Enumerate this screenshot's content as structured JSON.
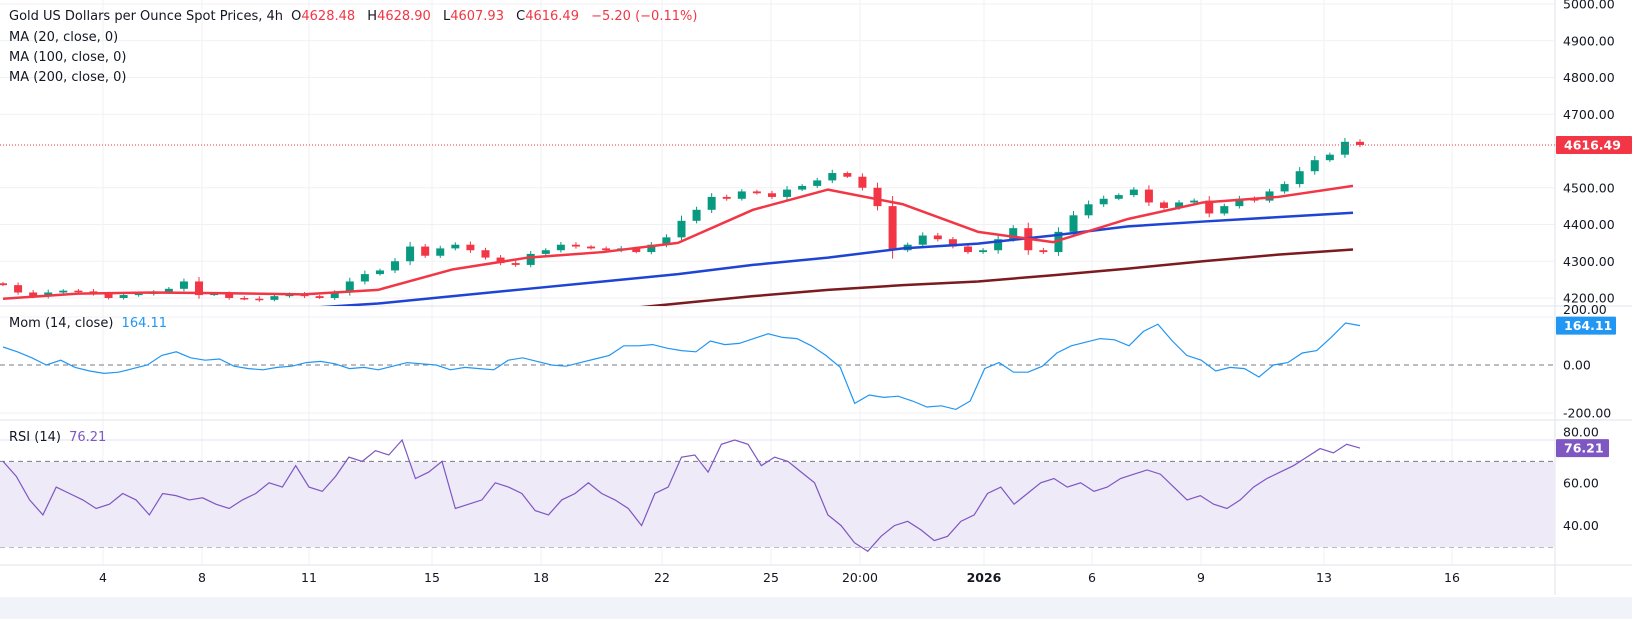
{
  "header": {
    "symbol_title": "Gold US Dollars per Ounce Spot Prices, 4h",
    "open_label": "O",
    "open": "4628.48",
    "high_label": "H",
    "high": "4628.90",
    "low_label": "L",
    "low": "4607.93",
    "close_label": "C",
    "close": "4616.49",
    "change": "−5.20 (−0.11%)"
  },
  "indicators": {
    "ma20": "MA (20, close, 0)",
    "ma100": "MA (100, close, 0)",
    "ma200": "MA (200, close, 0)",
    "mom_label": "Mom (14, close)",
    "mom_value": "164.11",
    "rsi_label": "RSI (14)",
    "rsi_value": "76.21"
  },
  "colors": {
    "up": "#089981",
    "down": "#F23645",
    "ma20": "#F23645",
    "ma100": "#1E44D4",
    "ma200": "#7B1A1F",
    "mom": "#2196F3",
    "rsi": "#7E57C2",
    "rsi_band": "#EEEAF8"
  },
  "chart_data": {
    "type": "candlestick",
    "price_axis": {
      "ticks": [
        "5000.00",
        "4900.00",
        "4800.00",
        "4700.00",
        "4500.00",
        "4400.00",
        "4300.00",
        "4200.00"
      ],
      "range": [
        4170,
        5000
      ],
      "last_price": "4616.49"
    },
    "time_axis": {
      "ticks": [
        "4",
        "8",
        "11",
        "15",
        "18",
        "22",
        "25",
        "20:00",
        "2026",
        "6",
        "9",
        "13",
        "16"
      ]
    },
    "closes": [
      4235,
      4215,
      4205,
      4215,
      4220,
      4218,
      4212,
      4200,
      4208,
      4212,
      4215,
      4225,
      4245,
      4208,
      4212,
      4200,
      4198,
      4195,
      4205,
      4210,
      4205,
      4200,
      4215,
      4245,
      4265,
      4275,
      4300,
      4340,
      4315,
      4335,
      4345,
      4330,
      4310,
      4295,
      4290,
      4320,
      4330,
      4345,
      4340,
      4335,
      4330,
      4335,
      4325,
      4345,
      4365,
      4410,
      4440,
      4475,
      4470,
      4490,
      4485,
      4475,
      4495,
      4505,
      4520,
      4540,
      4530,
      4500,
      4450,
      4330,
      4345,
      4370,
      4360,
      4340,
      4325,
      4330,
      4360,
      4390,
      4330,
      4325,
      4380,
      4425,
      4455,
      4470,
      4480,
      4495,
      4460,
      4445,
      4460,
      4465,
      4430,
      4450,
      4470,
      4465,
      4490,
      4510,
      4545,
      4575,
      4590,
      4625,
      4616.49
    ],
    "ma20": {
      "values": [
        4198,
        4212,
        4215,
        4213,
        4210,
        4222,
        4278,
        4310,
        4325,
        4350,
        4440,
        4495,
        4455,
        4380,
        4352,
        4415,
        4460,
        4475,
        4505
      ]
    },
    "ma100": {
      "values": [
        4172,
        4185,
        4205,
        4225,
        4245,
        4265,
        4290,
        4310,
        4335,
        4348,
        4370,
        4395,
        4408,
        4420,
        4432
      ]
    },
    "ma200": {
      "values": [
        4165,
        4185,
        4205,
        4222,
        4235,
        4245,
        4262,
        4280,
        4300,
        4318,
        4332
      ]
    },
    "momentum": {
      "ticks": [
        "200.00",
        "0.00",
        "-200.00"
      ],
      "values": [
        75,
        55,
        30,
        0,
        20,
        -10,
        -25,
        -35,
        -30,
        -15,
        0,
        40,
        55,
        30,
        20,
        25,
        -5,
        -15,
        -20,
        -10,
        -5,
        10,
        15,
        5,
        -15,
        -10,
        -20,
        -5,
        10,
        5,
        0,
        -20,
        -10,
        -15,
        -20,
        20,
        30,
        15,
        0,
        -5,
        10,
        25,
        40,
        80,
        80,
        85,
        70,
        60,
        55,
        100,
        85,
        90,
        110,
        130,
        115,
        110,
        80,
        40,
        -10,
        -160,
        -125,
        -135,
        -130,
        -150,
        -175,
        -170,
        -185,
        -150,
        -15,
        10,
        -30,
        -30,
        -5,
        50,
        80,
        95,
        110,
        105,
        80,
        140,
        170,
        100,
        40,
        20,
        -25,
        -10,
        -15,
        -50,
        0,
        10,
        50,
        60,
        115,
        175,
        164.11
      ]
    },
    "rsi": {
      "ticks": [
        "80.00",
        "60.00",
        "40.00"
      ],
      "bands": [
        70,
        50,
        30
      ],
      "values": [
        70,
        63,
        52,
        45,
        58,
        55,
        52,
        48,
        50,
        55,
        52,
        45,
        55,
        54,
        52,
        53,
        50,
        48,
        52,
        55,
        60,
        58,
        68,
        58,
        56,
        63,
        72,
        70,
        75,
        73,
        80,
        62,
        65,
        70,
        48,
        50,
        52,
        60,
        58,
        55,
        47,
        45,
        52,
        55,
        60,
        55,
        52,
        48,
        40,
        55,
        58,
        72,
        73,
        65,
        78,
        80,
        78,
        68,
        72,
        70,
        65,
        60,
        45,
        40,
        32,
        28,
        35,
        40,
        42,
        38,
        33,
        35,
        42,
        45,
        55,
        58,
        50,
        55,
        60,
        62,
        58,
        60,
        56,
        58,
        62,
        64,
        66,
        64,
        58,
        52,
        54,
        50,
        48,
        52,
        58,
        62,
        65,
        68,
        72,
        76,
        74,
        78,
        76.21
      ]
    }
  }
}
